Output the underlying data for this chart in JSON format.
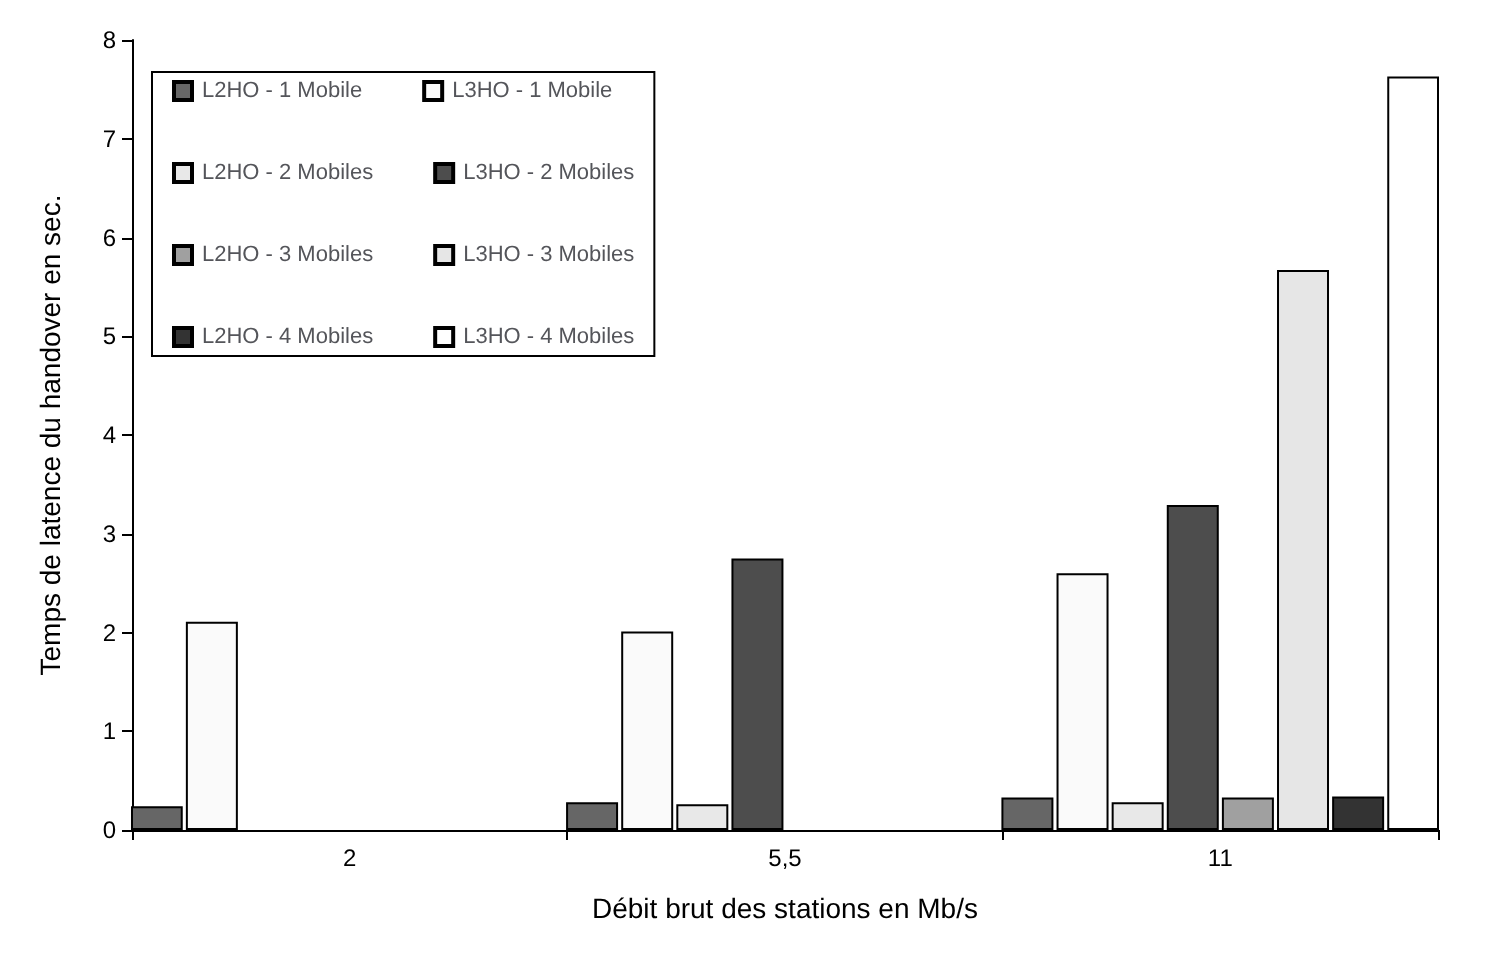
{
  "chart_data": {
    "type": "bar",
    "xlabel": "Débit brut des stations en Mb/s",
    "ylabel": "Temps de latence du handover en sec.",
    "categories": [
      "2",
      "5,5",
      "11"
    ],
    "series": [
      {
        "name": "L2HO - 1 Mobile",
        "color": "#666666",
        "values": [
          0.24,
          0.28,
          0.33
        ]
      },
      {
        "name": "L3HO - 1 Mobile",
        "color": "#fafafa",
        "values": [
          2.11,
          2.01,
          2.6
        ]
      },
      {
        "name": "L2HO - 2 Mobiles",
        "color": "#e8e8e8",
        "values": [
          null,
          0.26,
          0.28
        ]
      },
      {
        "name": "L3HO - 2 Mobiles",
        "color": "#4d4d4d",
        "values": [
          null,
          2.75,
          3.29
        ]
      },
      {
        "name": "L2HO - 3 Mobiles",
        "color": "#a0a0a0",
        "values": [
          null,
          null,
          0.33
        ]
      },
      {
        "name": "L3HO - 3 Mobiles",
        "color": "#e6e6e6",
        "values": [
          null,
          null,
          5.67
        ]
      },
      {
        "name": "L2HO - 4 Mobiles",
        "color": "#333333",
        "values": [
          null,
          null,
          0.34
        ]
      },
      {
        "name": "L3HO - 4 Mobiles",
        "color": "#ffffff",
        "values": [
          null,
          null,
          7.63
        ]
      }
    ],
    "ylim": [
      0,
      8
    ],
    "yticks": [
      0,
      1,
      2,
      3,
      4,
      5,
      6,
      7,
      8
    ],
    "grid": false,
    "legend": "top left"
  }
}
